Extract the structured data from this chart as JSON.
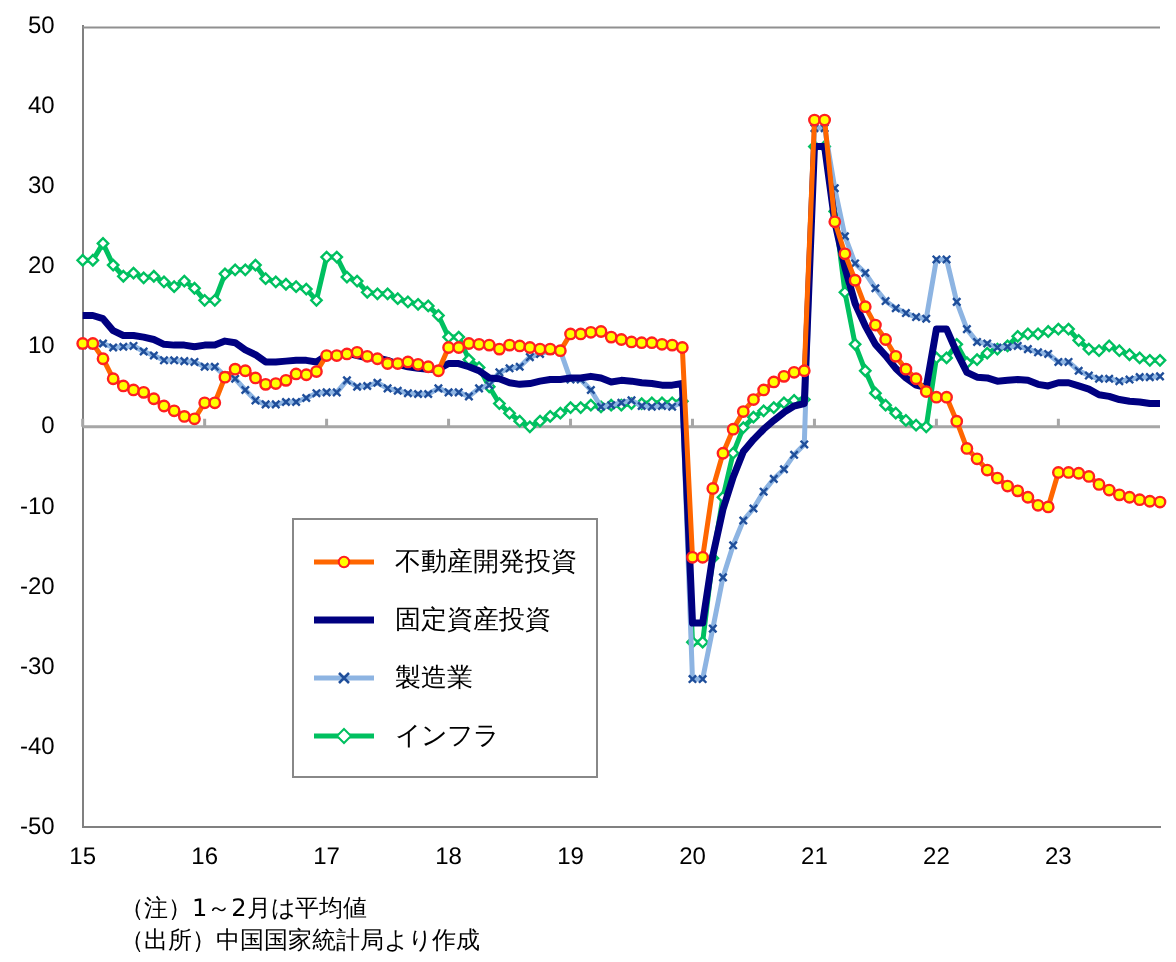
{
  "chart_data": {
    "type": "line",
    "categories": [
      "15",
      null,
      null,
      null,
      null,
      null,
      null,
      null,
      null,
      null,
      null,
      null,
      "16",
      null,
      null,
      null,
      null,
      null,
      null,
      null,
      null,
      null,
      null,
      null,
      "17",
      null,
      null,
      null,
      null,
      null,
      null,
      null,
      null,
      null,
      null,
      null,
      "18",
      null,
      null,
      null,
      null,
      null,
      null,
      null,
      null,
      null,
      null,
      null,
      "19",
      null,
      null,
      null,
      null,
      null,
      null,
      null,
      null,
      null,
      null,
      null,
      "20",
      null,
      null,
      null,
      null,
      null,
      null,
      null,
      null,
      null,
      null,
      null,
      "21",
      null,
      null,
      null,
      null,
      null,
      null,
      null,
      null,
      null,
      null,
      null,
      "22",
      null,
      null,
      null,
      null,
      null,
      null,
      null,
      null,
      null,
      null,
      null,
      "23",
      null,
      null,
      null,
      null,
      null,
      null,
      null,
      null,
      null,
      null
    ],
    "series": [
      {
        "name": "不動産開発投資",
        "color": "#ff6600",
        "marker": "circle",
        "values": [
          10.4,
          10.4,
          8.5,
          6.0,
          5.1,
          4.6,
          4.3,
          3.5,
          2.6,
          2.0,
          1.3,
          1.0,
          3.0,
          3.0,
          6.2,
          7.2,
          7.0,
          6.1,
          5.3,
          5.4,
          5.8,
          6.6,
          6.5,
          6.9,
          8.9,
          8.9,
          9.1,
          9.3,
          8.8,
          8.5,
          7.9,
          7.9,
          8.1,
          7.8,
          7.5,
          7.0,
          9.9,
          9.9,
          10.4,
          10.3,
          10.2,
          9.7,
          10.2,
          10.1,
          9.9,
          9.7,
          9.7,
          9.5,
          11.6,
          11.6,
          11.8,
          11.9,
          11.2,
          10.9,
          10.6,
          10.5,
          10.5,
          10.3,
          10.2,
          9.9,
          -16.3,
          -16.3,
          -7.7,
          -3.3,
          -0.3,
          1.9,
          3.4,
          4.6,
          5.6,
          6.3,
          6.8,
          7.0,
          38.3,
          38.3,
          25.6,
          21.6,
          18.3,
          15.0,
          12.7,
          10.9,
          8.8,
          7.2,
          6.0,
          4.4,
          3.7,
          3.7,
          0.7,
          -2.7,
          -4.0,
          -5.4,
          -6.4,
          -7.4,
          -8.0,
          -8.8,
          -9.8,
          -10.0,
          -5.7,
          -5.7,
          -5.8,
          -6.2,
          -7.2,
          -7.9,
          -8.5,
          -8.8,
          -9.1,
          -9.3,
          -9.4
        ]
      },
      {
        "name": "固定資産投資",
        "color": "#000080",
        "marker": "none",
        "values": [
          13.9,
          13.9,
          13.5,
          12.0,
          11.4,
          11.4,
          11.2,
          10.9,
          10.3,
          10.2,
          10.2,
          10.0,
          10.2,
          10.2,
          10.7,
          10.5,
          9.6,
          9.0,
          8.1,
          8.1,
          8.2,
          8.3,
          8.3,
          8.1,
          8.9,
          8.9,
          9.2,
          8.9,
          8.6,
          8.6,
          8.3,
          7.8,
          7.5,
          7.3,
          7.2,
          7.2,
          7.9,
          7.9,
          7.5,
          7.0,
          6.1,
          6.0,
          5.5,
          5.3,
          5.4,
          5.7,
          5.9,
          5.9,
          6.1,
          6.1,
          6.3,
          6.1,
          5.6,
          5.8,
          5.7,
          5.5,
          5.4,
          5.2,
          5.2,
          5.4,
          -24.5,
          -24.5,
          -16.1,
          -10.3,
          -6.3,
          -3.1,
          -1.6,
          -0.3,
          0.8,
          1.8,
          2.6,
          2.9,
          35.0,
          35.0,
          25.6,
          19.9,
          15.4,
          12.6,
          10.3,
          8.9,
          7.3,
          6.1,
          5.2,
          4.9,
          12.2,
          12.2,
          9.3,
          6.8,
          6.2,
          6.1,
          5.7,
          5.8,
          5.9,
          5.8,
          5.3,
          5.1,
          5.5,
          5.5,
          5.1,
          4.7,
          4.0,
          3.8,
          3.4,
          3.2,
          3.1,
          2.9,
          2.9
        ]
      },
      {
        "name": "製造業",
        "color": "#8db4e2",
        "marker": "cross",
        "values": [
          10.2,
          10.2,
          10.4,
          9.9,
          10.0,
          10.1,
          9.4,
          8.9,
          8.3,
          8.3,
          8.2,
          8.1,
          7.5,
          7.5,
          6.4,
          6.0,
          4.6,
          3.3,
          2.8,
          2.8,
          3.1,
          3.1,
          3.6,
          4.2,
          4.3,
          4.3,
          5.8,
          5.0,
          5.1,
          5.5,
          4.8,
          4.5,
          4.2,
          4.1,
          4.1,
          4.8,
          4.3,
          4.3,
          3.8,
          4.8,
          5.2,
          6.8,
          7.3,
          7.5,
          8.7,
          9.1,
          9.5,
          9.5,
          5.9,
          5.9,
          4.6,
          2.5,
          2.7,
          3.0,
          3.3,
          2.6,
          2.5,
          2.6,
          2.5,
          3.1,
          -31.5,
          -31.5,
          -25.2,
          -18.8,
          -14.8,
          -11.7,
          -10.2,
          -8.1,
          -6.5,
          -5.3,
          -3.5,
          -2.2,
          37.3,
          37.3,
          29.8,
          23.8,
          20.4,
          19.2,
          17.3,
          15.7,
          14.8,
          14.2,
          13.7,
          13.5,
          20.9,
          20.9,
          15.6,
          12.2,
          10.6,
          10.4,
          9.9,
          10.0,
          10.1,
          9.7,
          9.3,
          9.1,
          8.1,
          8.1,
          7.0,
          6.4,
          6.0,
          6.0,
          5.7,
          5.9,
          6.2,
          6.2,
          6.3
        ]
      },
      {
        "name": "インフラ",
        "color": "#00c060",
        "marker": "diamond",
        "values": [
          20.8,
          20.8,
          22.9,
          20.2,
          18.8,
          19.2,
          18.6,
          18.8,
          18.1,
          17.5,
          18.2,
          17.3,
          15.8,
          15.8,
          19.1,
          19.6,
          19.6,
          20.2,
          18.5,
          18.1,
          17.8,
          17.5,
          17.2,
          15.8,
          21.2,
          21.2,
          18.7,
          18.2,
          16.8,
          16.6,
          16.6,
          16.0,
          15.6,
          15.3,
          15.1,
          13.9,
          11.2,
          11.2,
          8.4,
          7.4,
          5.0,
          2.9,
          1.7,
          0.7,
          0.0,
          0.7,
          1.3,
          1.7,
          2.4,
          2.4,
          2.7,
          2.5,
          2.7,
          2.7,
          2.9,
          2.9,
          3.0,
          3.0,
          3.0,
          3.2,
          -26.9,
          -26.9,
          -16.4,
          -8.8,
          -3.3,
          -0.1,
          1.2,
          2.0,
          2.4,
          3.0,
          3.3,
          3.4,
          35.0,
          35.0,
          26.9,
          16.8,
          10.3,
          7.0,
          4.2,
          2.7,
          1.7,
          0.8,
          0.2,
          0.0,
          8.6,
          8.6,
          10.3,
          8.0,
          8.4,
          9.2,
          9.7,
          10.1,
          11.3,
          11.6,
          11.6,
          11.9,
          12.2,
          12.2,
          10.8,
          9.7,
          9.5,
          10.1,
          9.5,
          9.0,
          8.6,
          8.3,
          8.3
        ]
      }
    ],
    "ylim": [
      -50,
      50
    ],
    "yticks": [
      -50,
      -40,
      -30,
      -20,
      -10,
      0,
      10,
      20,
      30,
      40,
      50
    ],
    "grid": false,
    "legend": "bottom left",
    "ref_lines": [
      {
        "axis": "y",
        "value": 0,
        "color": "#a6a6a6"
      }
    ],
    "annotations": [
      "（注）1～2月は平均値",
      "（出所）中国国家統計局より作成"
    ]
  }
}
